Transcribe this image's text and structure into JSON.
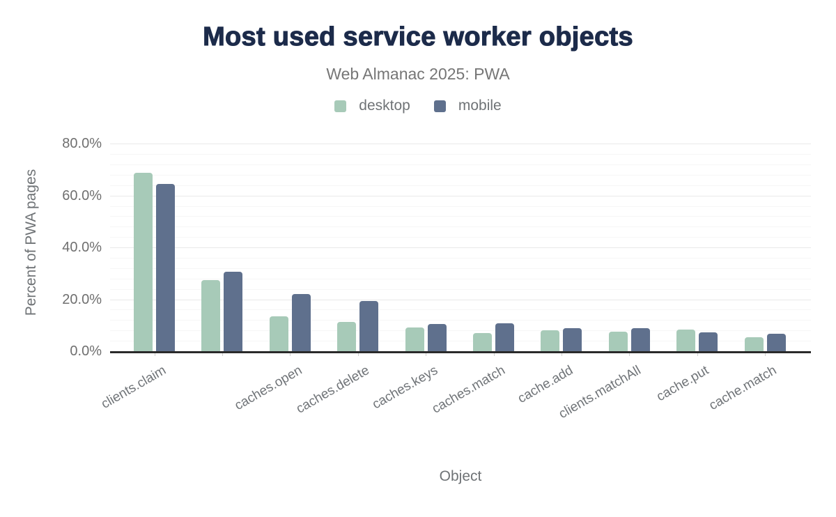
{
  "header": {
    "title": "Most used service worker objects",
    "subtitle": "Web Almanac 2025: PWA"
  },
  "x_axis": {
    "title": "Object"
  },
  "y_axis": {
    "title": "Percent of PWA pages",
    "ticks": [
      "0.0%",
      "20.0%",
      "40.0%",
      "60.0%",
      "80.0%"
    ]
  },
  "colors": {
    "title_text": "#1c2b4a",
    "subtitle_text": "#767676",
    "axis_text": "#6f7376",
    "axis_line": "#2a2a2a",
    "grid_major": "#e9e9e9",
    "grid_minor": "#f6f6f6",
    "desktop": "#a7cab8",
    "mobile": "#5f708d"
  },
  "chart_data": {
    "type": "bar",
    "title": "Most used service worker objects",
    "subtitle": "Web Almanac 2025: PWA",
    "xlabel": "Object",
    "ylabel": "Percent of PWA pages",
    "unit": "%",
    "ylim": [
      0,
      80
    ],
    "y_major_step": 20,
    "y_minor_step": 4,
    "grid": true,
    "legend_position": "top",
    "legend": [
      "desktop",
      "mobile"
    ],
    "categories": [
      "clients.claim",
      "",
      "caches.open",
      "caches.delete",
      "caches.keys",
      "caches.match",
      "cache.add",
      "clients.matchAll",
      "cache.put",
      "cache.match"
    ],
    "series": [
      {
        "name": "desktop",
        "color": "#a7cab8",
        "values": [
          68.7,
          27.3,
          13.4,
          11.4,
          9.2,
          7.0,
          8.0,
          7.5,
          8.3,
          5.3
        ]
      },
      {
        "name": "mobile",
        "color": "#5f708d",
        "values": [
          64.4,
          30.6,
          22.0,
          19.4,
          10.6,
          10.7,
          8.8,
          8.9,
          7.3,
          6.7
        ]
      }
    ]
  }
}
